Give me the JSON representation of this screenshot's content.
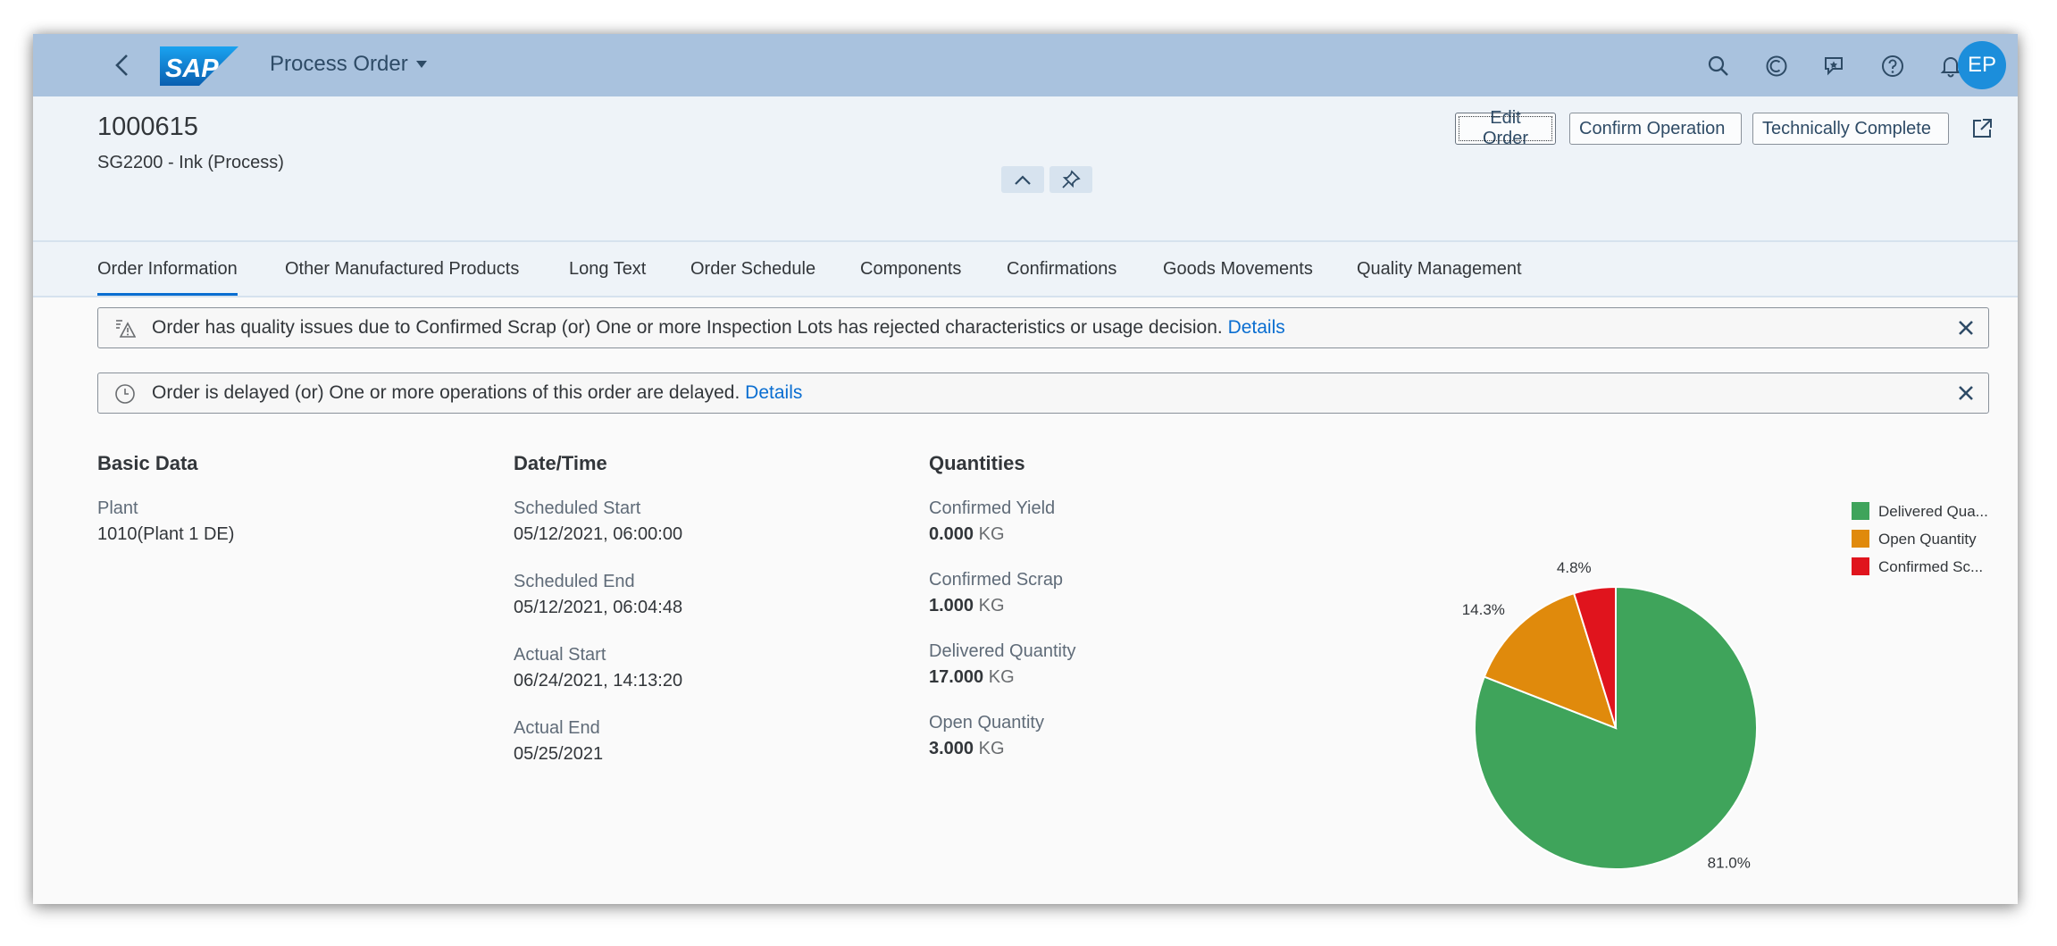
{
  "shell": {
    "app_title": "Process Order",
    "logo_text": "SAP",
    "avatar_initials": "EP",
    "icons": [
      "search-icon",
      "copilot-icon",
      "feedback-icon",
      "help-icon",
      "notifications-icon"
    ]
  },
  "header": {
    "order_number": "1000615",
    "subtitle": "SG2200 - Ink (Process)",
    "actions": {
      "edit": "Edit Order",
      "confirm": "Confirm Operation",
      "complete": "Technically Complete"
    }
  },
  "tabs": [
    {
      "label": "Order Information",
      "active": true
    },
    {
      "label": "Other Manufactured Products"
    },
    {
      "label": "Long Text"
    },
    {
      "label": "Order Schedule"
    },
    {
      "label": "Components"
    },
    {
      "label": "Confirmations"
    },
    {
      "label": "Goods Movements"
    },
    {
      "label": "Quality Management"
    }
  ],
  "messages": [
    {
      "text": "Order has quality issues due to Confirmed Scrap (or) One or more Inspection Lots has rejected characteristics or usage decision.",
      "link": "Details",
      "icon": "quality-warning-icon"
    },
    {
      "text": "Order is delayed (or) One or more operations of this order are delayed.",
      "link": "Details",
      "icon": "clock-icon"
    }
  ],
  "basic_data": {
    "title": "Basic Data",
    "plant_label": "Plant",
    "plant_value": "1010(Plant 1 DE)"
  },
  "datetime": {
    "title": "Date/Time",
    "fields": [
      {
        "label": "Scheduled Start",
        "value": "05/12/2021, 06:00:00"
      },
      {
        "label": "Scheduled End",
        "value": "05/12/2021, 06:04:48"
      },
      {
        "label": "Actual Start",
        "value": "06/24/2021, 14:13:20"
      },
      {
        "label": "Actual End",
        "value": "05/25/2021"
      }
    ]
  },
  "quantities": {
    "title": "Quantities",
    "fields": [
      {
        "label": "Confirmed Yield",
        "value": "0.000",
        "unit": "KG"
      },
      {
        "label": "Confirmed Scrap",
        "value": "1.000",
        "unit": "KG"
      },
      {
        "label": "Delivered Quantity",
        "value": "17.000",
        "unit": "KG"
      },
      {
        "label": "Open Quantity",
        "value": "3.000",
        "unit": "KG"
      }
    ]
  },
  "chart_data": {
    "type": "pie",
    "slices": [
      {
        "label": "Delivered Qua...",
        "value": 81.0,
        "display": "81.0%",
        "color": "#3fa45b"
      },
      {
        "label": "Open Quantity",
        "value": 14.3,
        "display": "14.3%",
        "color": "#e08a0c"
      },
      {
        "label": "Confirmed Sc...",
        "value": 4.8,
        "display": "4.8%",
        "color": "#e0141d"
      }
    ],
    "legend_position": "top-right"
  }
}
